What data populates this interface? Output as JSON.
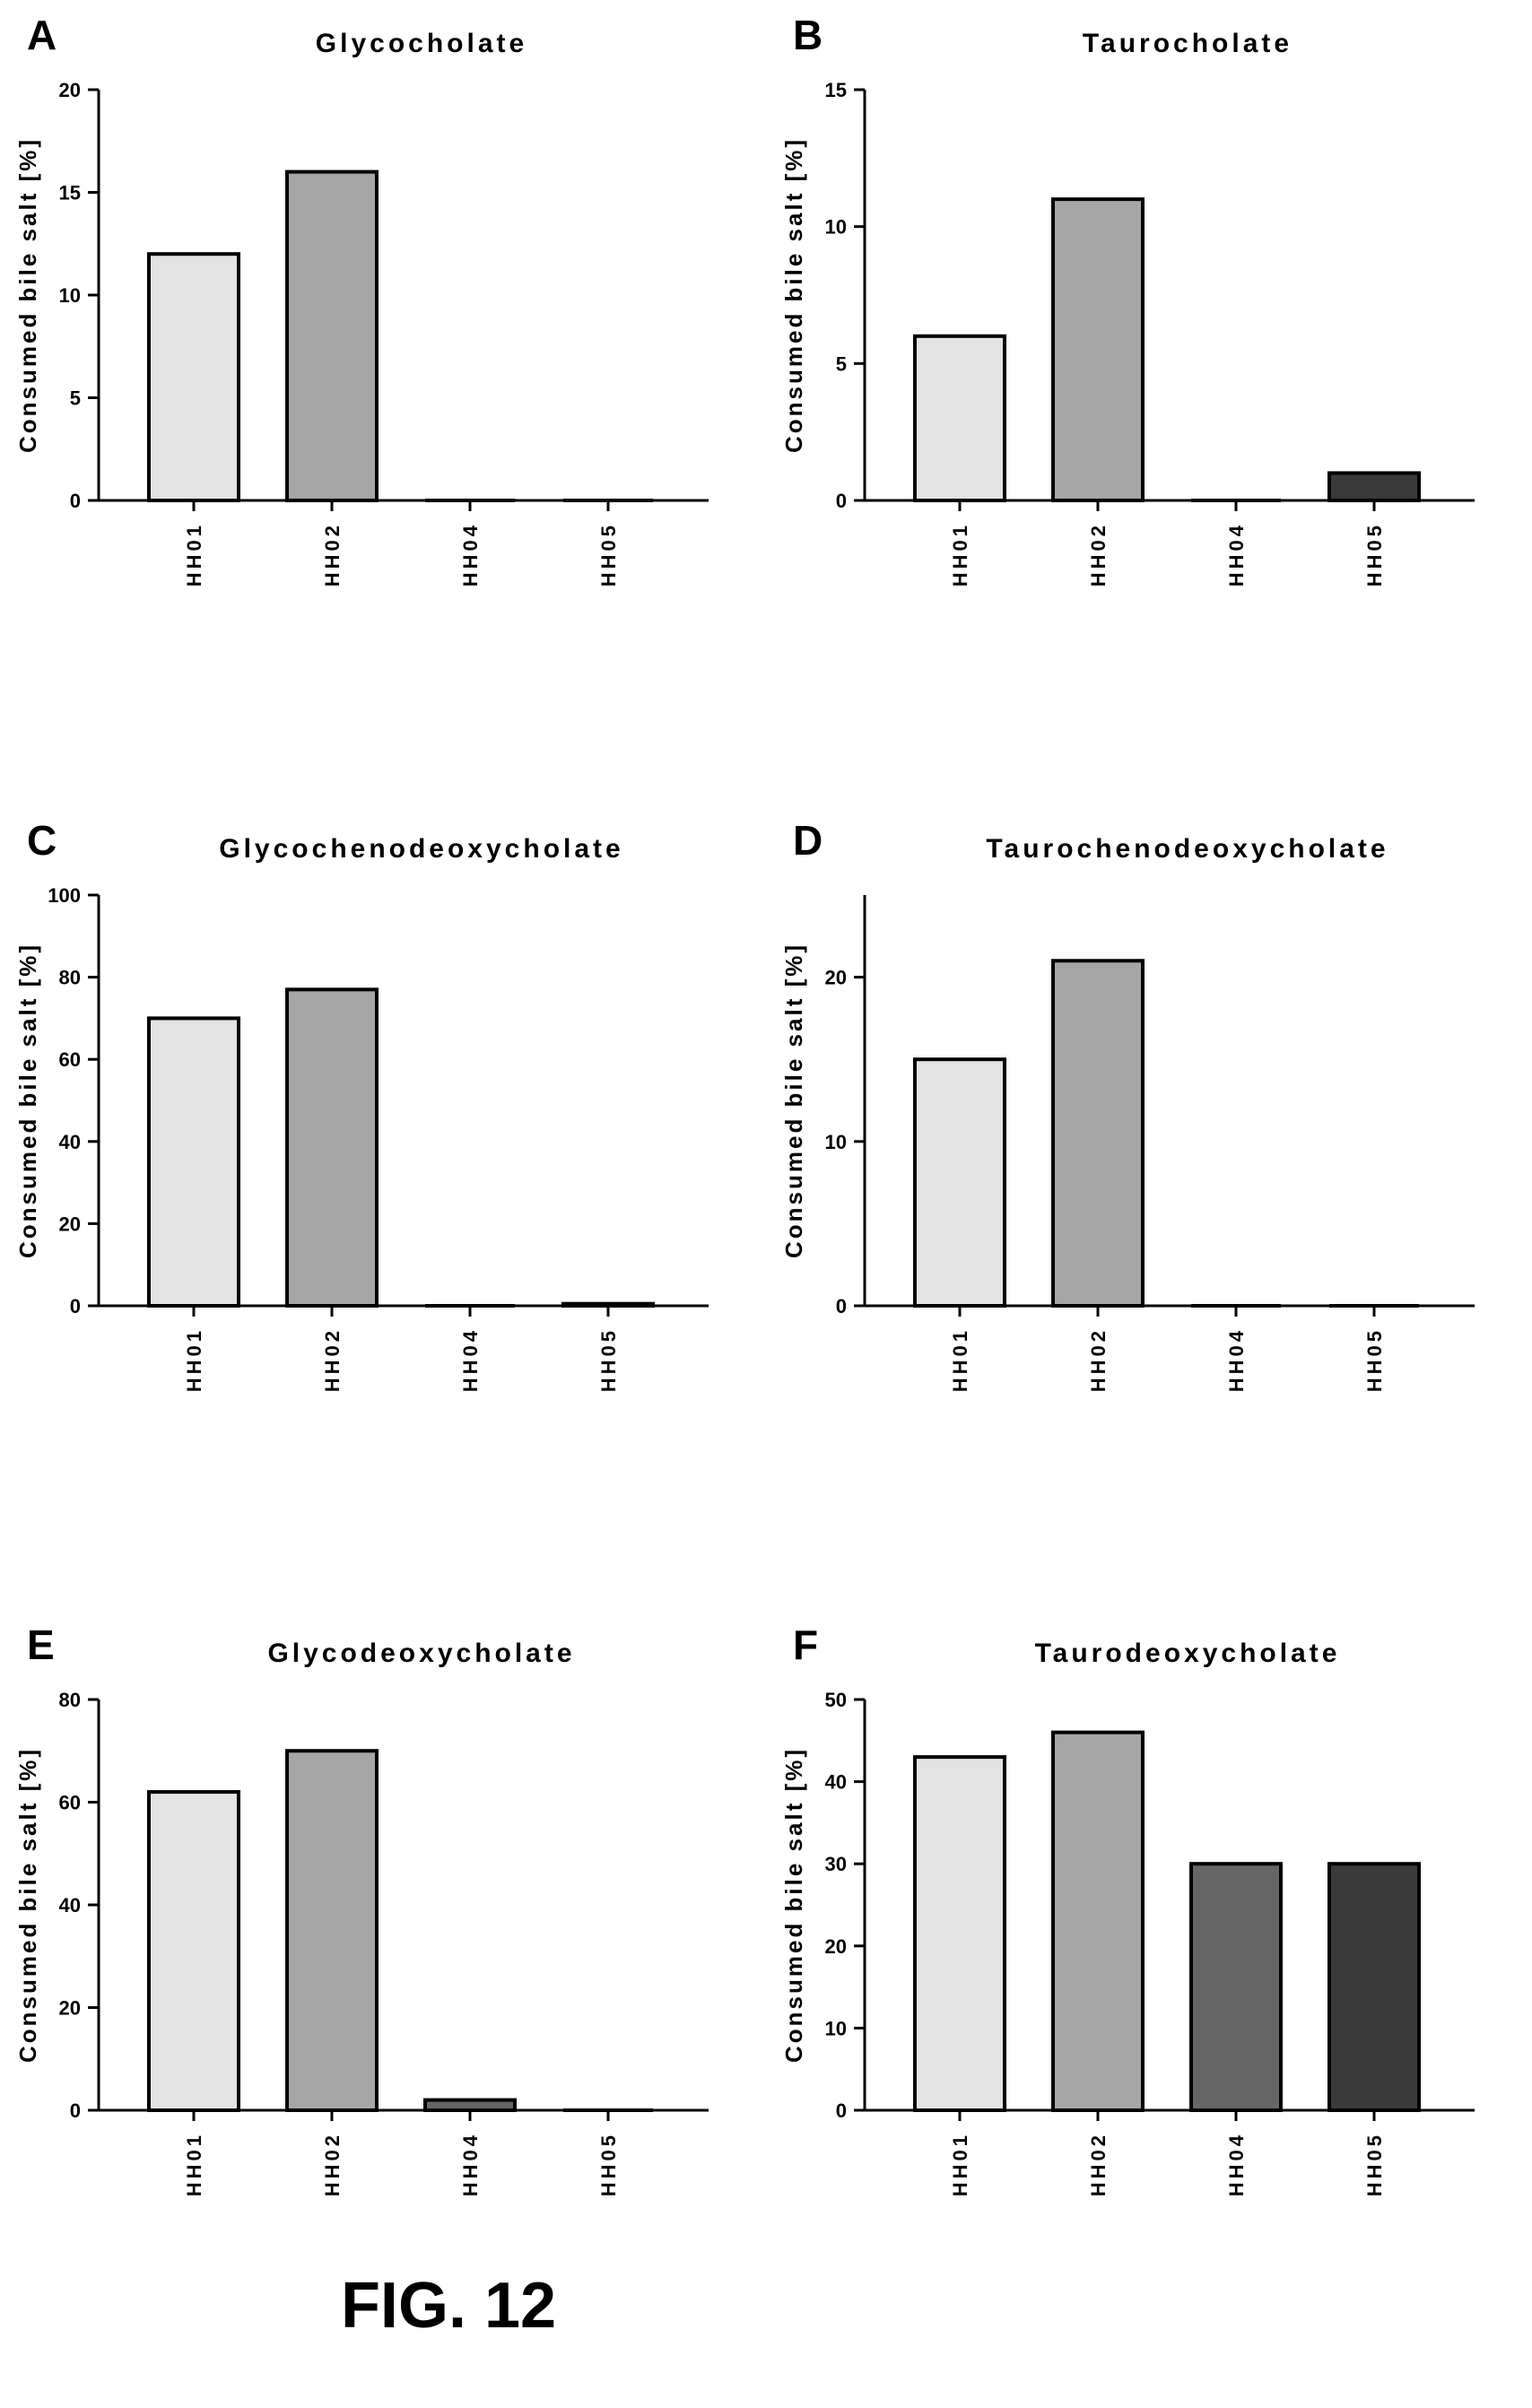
{
  "figure_caption": "FIG. 12",
  "colors": {
    "HH01": "#e3e3e3",
    "HH02": "#a6a6a6",
    "HH04": "#666666",
    "HH05": "#3a3a3a",
    "axis": "#000000"
  },
  "chart_data": [
    {
      "letter": "A",
      "type": "bar",
      "title": "Glycocholate",
      "ylabel": "Consumed bile salt [%]",
      "xlabel": "",
      "categories": [
        "HH01",
        "HH02",
        "HH04",
        "HH05"
      ],
      "values": [
        12,
        16,
        0,
        0
      ],
      "ylim": [
        0,
        20
      ],
      "yticks": [
        0,
        5,
        10,
        15,
        20
      ],
      "grid": false
    },
    {
      "letter": "B",
      "type": "bar",
      "title": "Taurocholate",
      "ylabel": "Consumed bile salt [%]",
      "xlabel": "",
      "categories": [
        "HH01",
        "HH02",
        "HH04",
        "HH05"
      ],
      "values": [
        6,
        11,
        0,
        1
      ],
      "ylim": [
        0,
        15
      ],
      "yticks": [
        0,
        5,
        10,
        15
      ],
      "grid": false
    },
    {
      "letter": "C",
      "type": "bar",
      "title": "Glycochenodeoxycholate",
      "ylabel": "Consumed bile salt [%]",
      "xlabel": "",
      "categories": [
        "HH01",
        "HH02",
        "HH04",
        "HH05"
      ],
      "values": [
        70,
        77,
        0,
        0.5
      ],
      "ylim": [
        0,
        100
      ],
      "yticks": [
        0,
        20,
        40,
        60,
        80,
        100
      ],
      "grid": false
    },
    {
      "letter": "D",
      "type": "bar",
      "title": "Taurochenodeoxycholate",
      "ylabel": "Consumed bile salt [%]",
      "xlabel": "",
      "categories": [
        "HH01",
        "HH02",
        "HH04",
        "HH05"
      ],
      "values": [
        15,
        21,
        0,
        0
      ],
      "ylim": [
        0,
        25
      ],
      "yticks": [
        0,
        10,
        20
      ],
      "grid": false
    },
    {
      "letter": "E",
      "type": "bar",
      "title": "Glycodeoxycholate",
      "ylabel": "Consumed bile salt [%]",
      "xlabel": "",
      "categories": [
        "HH01",
        "HH02",
        "HH04",
        "HH05"
      ],
      "values": [
        62,
        70,
        2,
        0
      ],
      "ylim": [
        0,
        80
      ],
      "yticks": [
        0,
        20,
        40,
        60,
        80
      ],
      "grid": false
    },
    {
      "letter": "F",
      "type": "bar",
      "title": "Taurodeoxycholate",
      "ylabel": "Consumed bile salt [%]",
      "xlabel": "",
      "categories": [
        "HH01",
        "HH02",
        "HH04",
        "HH05"
      ],
      "values": [
        43,
        46,
        30,
        30
      ],
      "ylim": [
        0,
        50
      ],
      "yticks": [
        0,
        10,
        20,
        30,
        40,
        50
      ],
      "grid": false
    }
  ]
}
